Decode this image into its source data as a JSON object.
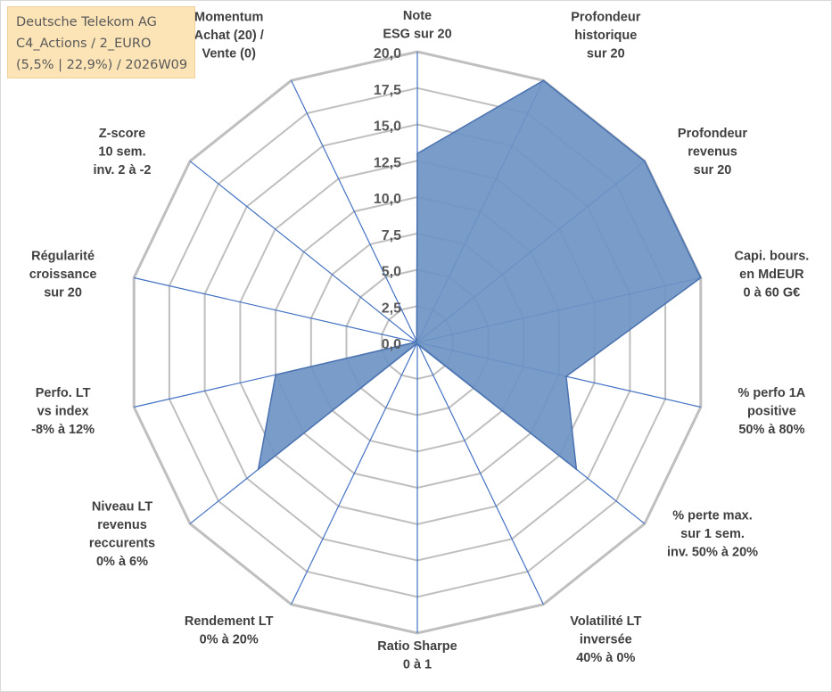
{
  "info_box": {
    "line1": "Deutsche Telekom AG",
    "line2": "C4_Actions / 2_EURO",
    "line3": "(5,5% | 22,9%) / 2026W09"
  },
  "colors": {
    "fill": "#6e94c4",
    "fill_stroke": "#4a72b0",
    "axis": "#4472c4",
    "ring": "#bfbfbf",
    "label": "#404040",
    "tick": "#595959"
  },
  "chart_data": {
    "type": "radar",
    "title": "",
    "rmin": 0,
    "rmax": 20,
    "tick_labels": [
      "0,0",
      "2,5",
      "5,0",
      "7,5",
      "10,0",
      "12,5",
      "15,0",
      "17,5",
      "20,0"
    ],
    "categories": [
      [
        "Note",
        "ESG sur 20"
      ],
      [
        "Profondeur",
        "historique",
        "sur 20"
      ],
      [
        "Profondeur",
        "revenus",
        "sur 20"
      ],
      [
        "Capi. bours.",
        "en MdEUR",
        "0 à 60 G€"
      ],
      [
        "% perfo 1A",
        "positive",
        "50% à 80%"
      ],
      [
        "% perte max.",
        "sur 1 sem.",
        "inv. 50% à 20%"
      ],
      [
        "Volatilité LT",
        "inversée",
        "40% à 0%"
      ],
      [
        "Ratio Sharpe",
        "0 à 1"
      ],
      [
        "Rendement LT",
        "0% à 20%"
      ],
      [
        "Niveau LT",
        "revenus",
        "reccurents",
        "0% à 6%"
      ],
      [
        "Perfo. LT",
        "vs index",
        "-8% à 12%"
      ],
      [
        "Régularité",
        "croissance",
        "sur 20"
      ],
      [
        "Z-score",
        "10 sem.",
        "inv. 2 à -2"
      ],
      [
        "Momentum",
        "Achat (20) /",
        "Vente (0)"
      ]
    ],
    "series": [
      {
        "values": [
          13.0,
          20.0,
          20.0,
          20.0,
          10.5,
          14.0,
          0.2,
          0.1,
          0.1,
          14.0,
          10.0,
          0.1,
          0.1,
          0.1
        ]
      }
    ]
  }
}
